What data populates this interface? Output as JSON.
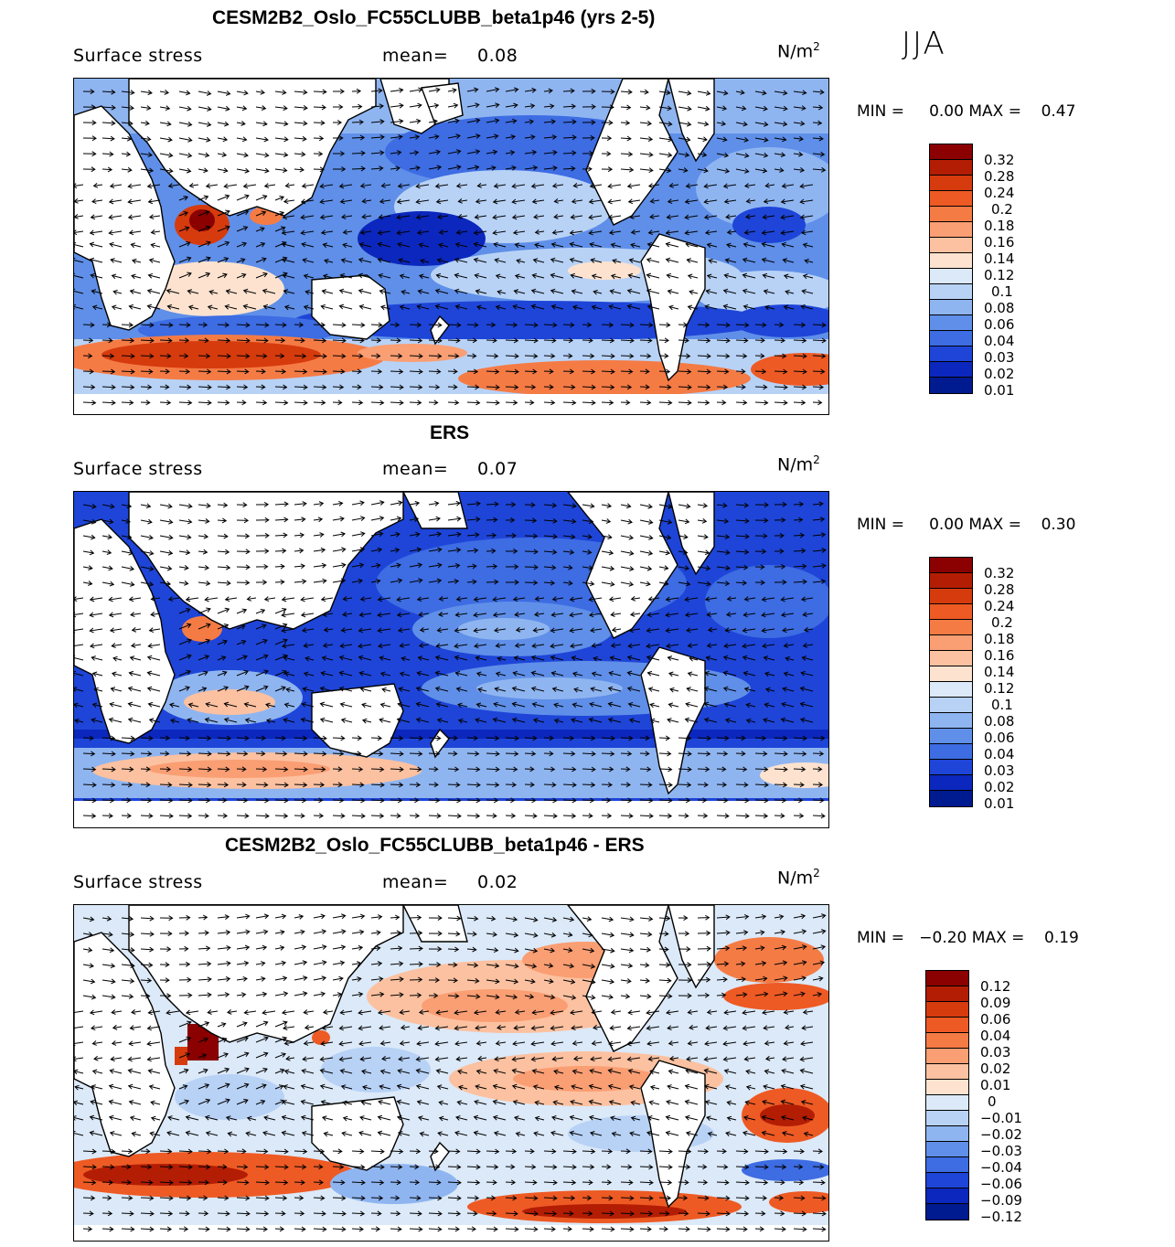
{
  "season": "JJA",
  "panels": [
    {
      "title": "CESM2B2_Oslo_FC55CLUBB_beta1p46 (yrs 2-5)",
      "subtitle": "Surface stress",
      "mean_label": "mean=",
      "mean_value": "0.08",
      "units": "N/m",
      "units_exp": "2",
      "min_label": "MIN =",
      "min_value": "0.00",
      "max_label": "MAX =",
      "max_value": "0.47",
      "colorbar_labels": [
        "0.32",
        "0.28",
        "0.24",
        "0.2",
        "0.18",
        "0.16",
        "0.14",
        "0.12",
        "0.1",
        "0.08",
        "0.06",
        "0.04",
        "0.03",
        "0.02",
        "0.01"
      ]
    },
    {
      "title": "ERS",
      "subtitle": "Surface stress",
      "mean_label": "mean=",
      "mean_value": "0.07",
      "units": "N/m",
      "units_exp": "2",
      "min_label": "MIN =",
      "min_value": "0.00",
      "max_label": "MAX =",
      "max_value": "0.30",
      "colorbar_labels": [
        "0.32",
        "0.28",
        "0.24",
        "0.2",
        "0.18",
        "0.16",
        "0.14",
        "0.12",
        "0.1",
        "0.08",
        "0.06",
        "0.04",
        "0.03",
        "0.02",
        "0.01"
      ]
    },
    {
      "title": "CESM2B2_Oslo_FC55CLUBB_beta1p46 - ERS",
      "subtitle": "Surface stress",
      "mean_label": "mean=",
      "mean_value": "0.02",
      "units": "N/m",
      "units_exp": "2",
      "min_label": "MIN =",
      "min_value": "−0.20",
      "max_label": "MAX =",
      "max_value": "0.19",
      "colorbar_labels": [
        "0.12",
        "0.09",
        "0.06",
        "0.04",
        "0.03",
        "0.02",
        "0.01",
        "0",
        "−0.01",
        "−0.02",
        "−0.03",
        "−0.04",
        "−0.06",
        "−0.09",
        "−0.12"
      ]
    }
  ],
  "colors": {
    "abs_scale": [
      "#8b0000",
      "#b31d04",
      "#d63b0e",
      "#ee5a24",
      "#f57b45",
      "#fa9e73",
      "#fcc1a0",
      "#fde3cf",
      "#dbe9f8",
      "#b8d2f6",
      "#8fb5f1",
      "#5f8fe8",
      "#3d6ce3",
      "#1e45d8",
      "#0b27bd",
      "#001a8f"
    ],
    "diff_scale": [
      "#8b0000",
      "#b31d04",
      "#d63b0e",
      "#ee5a24",
      "#f57b45",
      "#fa9e73",
      "#fcc1a0",
      "#fde3cf",
      "#dbe9f8",
      "#b8d2f6",
      "#8fb5f1",
      "#5f8fe8",
      "#3d6ce3",
      "#1e45d8",
      "#0b27bd",
      "#001a8f"
    ],
    "land": "#ffffff",
    "coast": "#000000"
  }
}
